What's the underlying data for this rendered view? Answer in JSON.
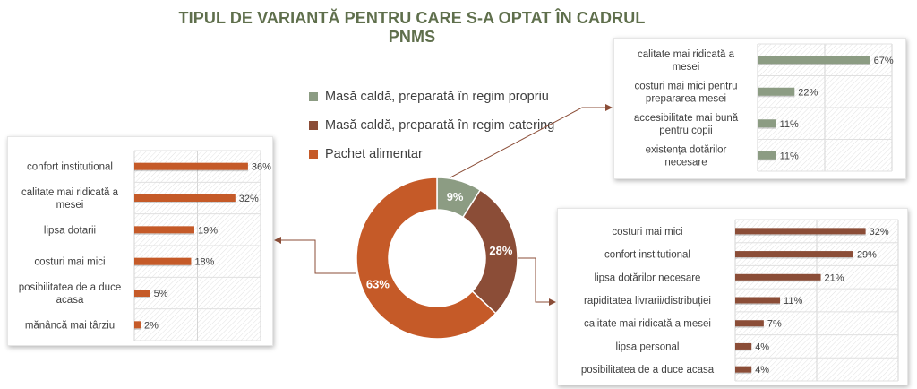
{
  "title": "TIPUL DE VARIANTĂ PENTRU CARE S-A OPTAT ÎN CADRUL PNMS",
  "colors": {
    "propriu": "#8c9c83",
    "catering": "#8b4d37",
    "pachet": "#c55a28",
    "connector": "#8b4d37",
    "title": "#5f6f4c"
  },
  "chart_data": [
    {
      "type": "pie",
      "variant": "donut",
      "categories": [
        "Masă caldă, preparată în regim propriu",
        "Masă caldă, preparată în regim catering",
        "Pachet alimentar"
      ],
      "values": [
        9,
        28,
        63
      ],
      "labels": [
        "9%",
        "28%",
        "63%"
      ],
      "legend": [
        "Masă caldă, preparată în regim propriu",
        "Masă caldă, preparată în regim catering",
        "Pachet alimentar"
      ],
      "legend_position": "top"
    },
    {
      "type": "bar",
      "orientation": "horizontal",
      "series_of": "Masă caldă, preparată în regim propriu",
      "categories": [
        [
          "calitate mai ridicată a",
          "mesei"
        ],
        [
          "costuri mai mici pentru",
          "prepararea mesei"
        ],
        [
          "accesibilitate mai bună",
          "pentru copii"
        ],
        [
          "existența dotărilor",
          "necesare"
        ]
      ],
      "values": [
        67,
        22,
        11,
        11
      ],
      "labels": [
        "67%",
        "22%",
        "11%",
        "11%"
      ],
      "xlim": [
        0,
        80
      ],
      "grid": true
    },
    {
      "type": "bar",
      "orientation": "horizontal",
      "series_of": "Masă caldă, preparată în regim catering",
      "categories": [
        [
          "costuri mai mici"
        ],
        [
          "confort institutional"
        ],
        [
          "lipsa dotărilor necesare"
        ],
        [
          "rapiditatea livrarii/distribuției"
        ],
        [
          "calitate mai ridicată a mesei"
        ],
        [
          "lipsa personal"
        ],
        [
          "posibilitatea de a duce acasa"
        ]
      ],
      "values": [
        32,
        29,
        21,
        11,
        7,
        4,
        4
      ],
      "labels": [
        "32%",
        "29%",
        "21%",
        "11%",
        "7%",
        "4%",
        "4%"
      ],
      "xlim": [
        0,
        40
      ],
      "grid": true
    },
    {
      "type": "bar",
      "orientation": "horizontal",
      "series_of": "Pachet alimentar",
      "categories": [
        [
          "confort institutional"
        ],
        [
          "calitate mai ridicată a",
          "mesei"
        ],
        [
          "lipsa dotarii"
        ],
        [
          "costuri mai mici"
        ],
        [
          "posibilitatea de a duce",
          "acasa"
        ],
        [
          "mănâncă mai târziu"
        ]
      ],
      "values": [
        36,
        32,
        19,
        18,
        5,
        2
      ],
      "labels": [
        "36%",
        "32%",
        "19%",
        "18%",
        "5%",
        "2%"
      ],
      "xlim": [
        0,
        40
      ],
      "grid": true
    }
  ]
}
